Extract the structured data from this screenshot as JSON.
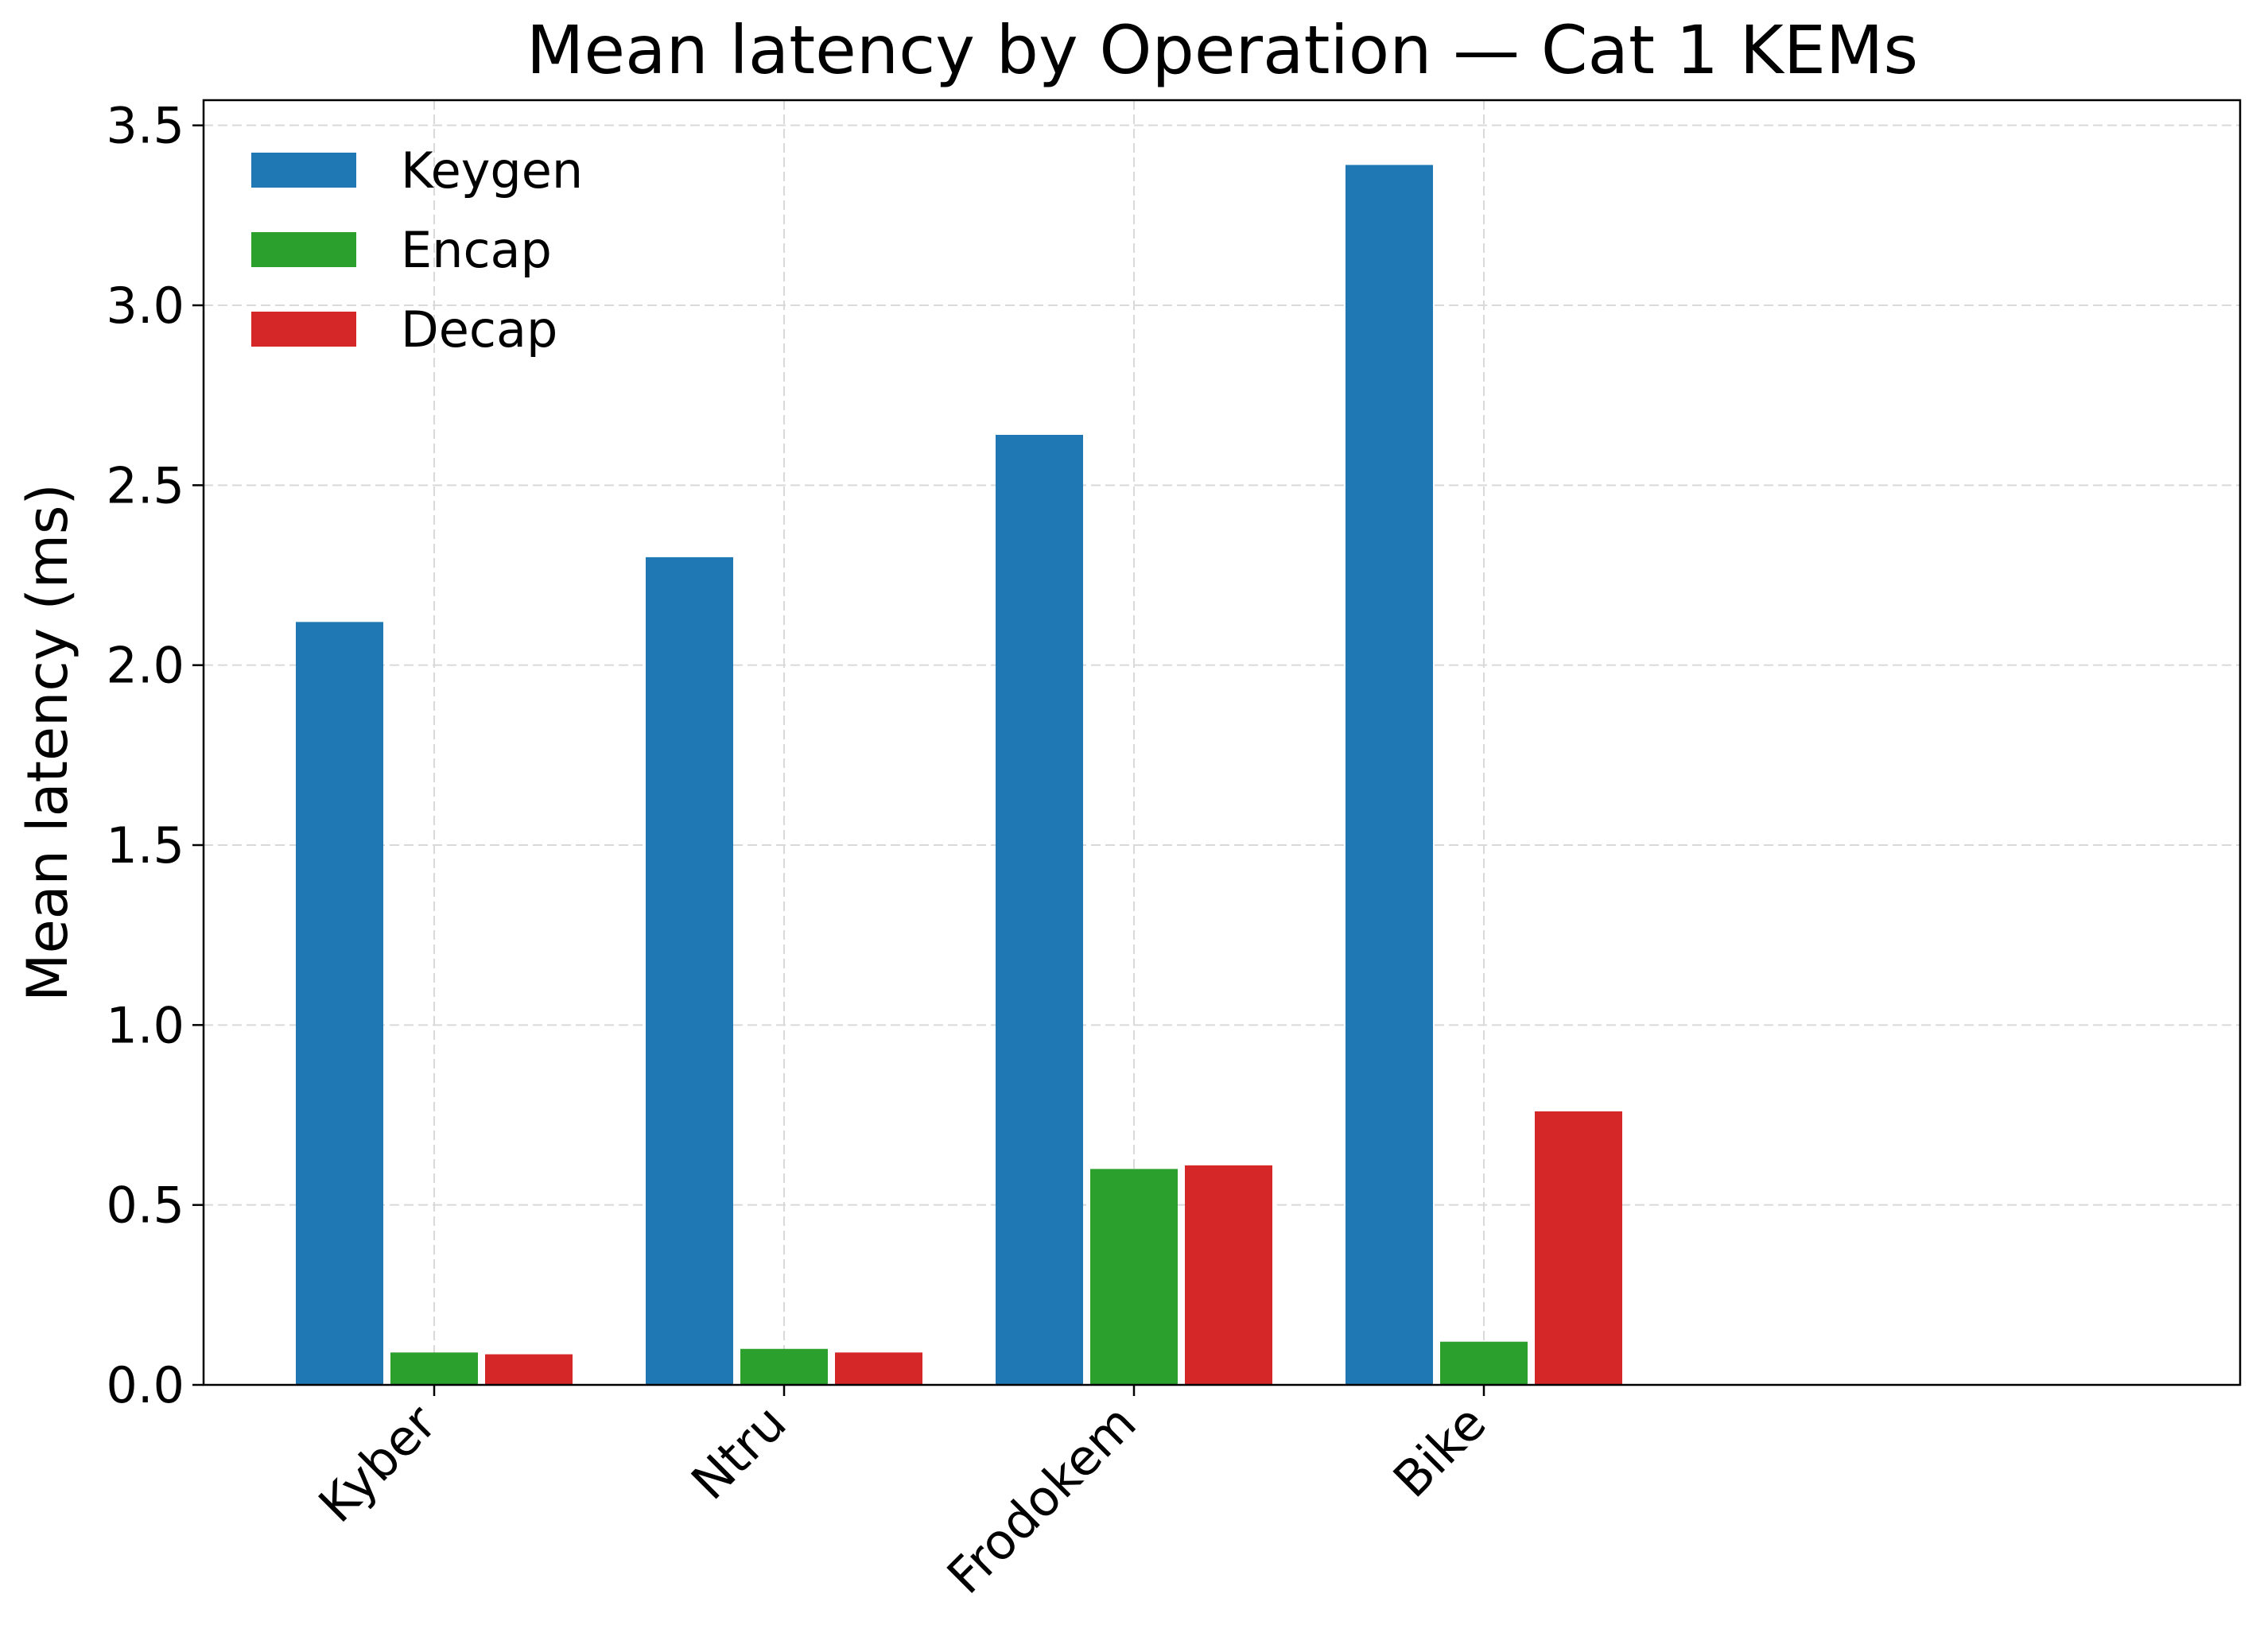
{
  "chart_data": {
    "type": "bar",
    "title": "Mean latency by Operation — Cat 1 KEMs",
    "xlabel": "",
    "ylabel": "Mean latency (ms)",
    "categories": [
      "Kyber",
      "Ntru",
      "Frodokem",
      "Bike"
    ],
    "series": [
      {
        "name": "Keygen",
        "color": "#1f77b4",
        "values": [
          2.12,
          2.3,
          2.64,
          3.39
        ]
      },
      {
        "name": "Encap",
        "color": "#2ca02c",
        "values": [
          0.09,
          0.1,
          0.6,
          0.12
        ]
      },
      {
        "name": "Decap",
        "color": "#d62728",
        "values": [
          0.085,
          0.09,
          0.61,
          0.76
        ]
      }
    ],
    "ylim": [
      0,
      3.57
    ],
    "yticks": [
      0.0,
      0.5,
      1.0,
      1.5,
      2.0,
      2.5,
      3.0,
      3.5
    ],
    "ytick_labels": [
      "0.0",
      "0.5",
      "1.0",
      "1.5",
      "2.0",
      "2.5",
      "3.0",
      "3.5"
    ],
    "grid": true,
    "legend_position": "top-left"
  }
}
